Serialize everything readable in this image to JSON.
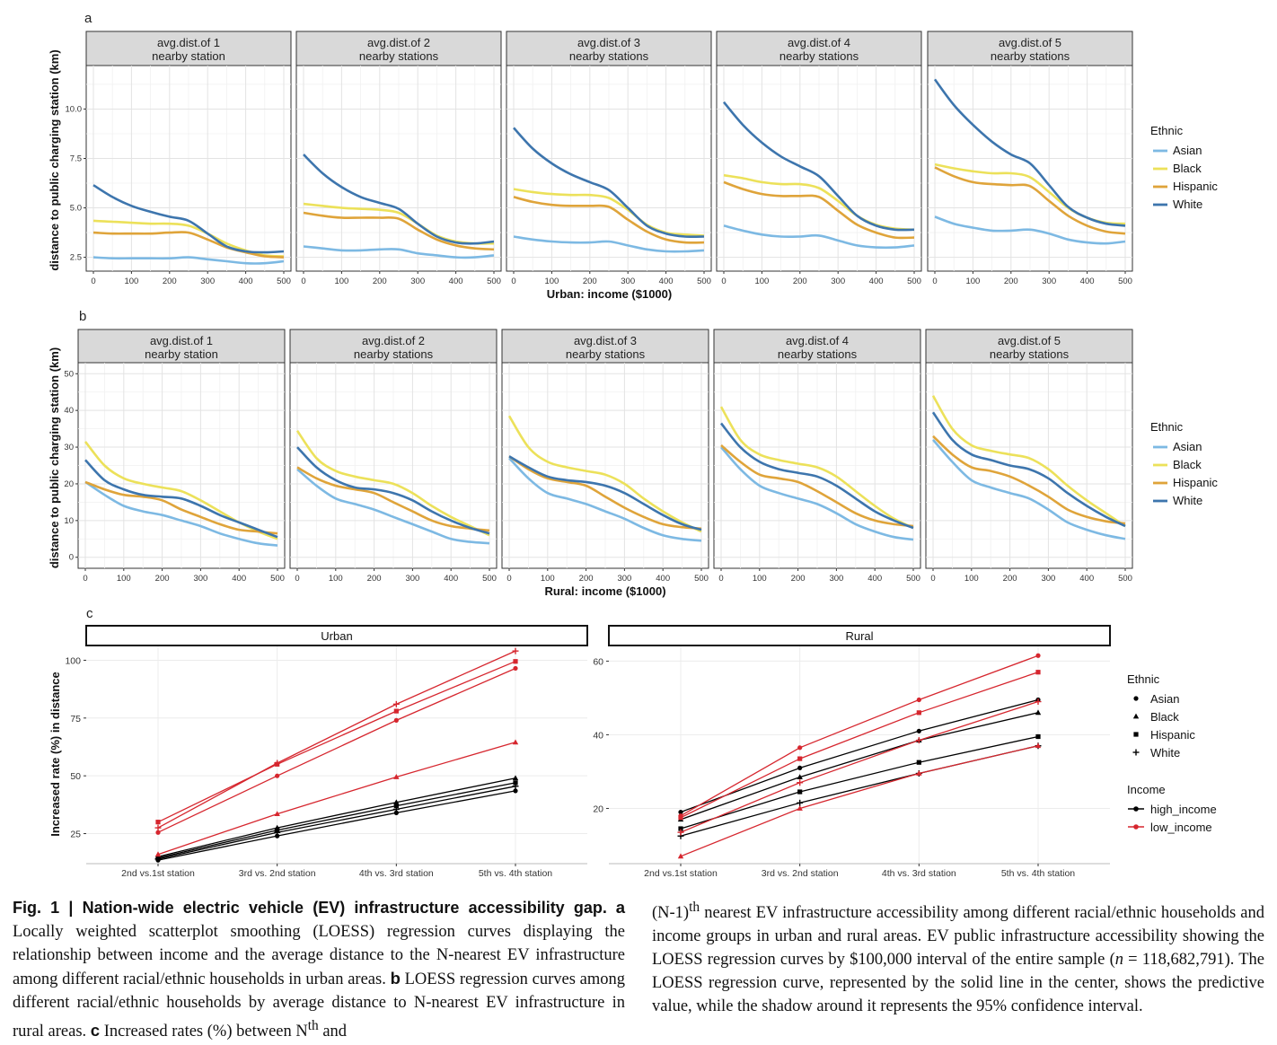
{
  "panel_labels": [
    "a",
    "b",
    "c"
  ],
  "facet_titles": [
    [
      "avg.dist.of 1",
      "nearby station"
    ],
    [
      "avg.dist.of 2",
      "nearby stations"
    ],
    [
      "avg.dist.of 3",
      "nearby stations"
    ],
    [
      "avg.dist.of 4",
      "nearby stations"
    ],
    [
      "avg.dist.of 5",
      "nearby stations"
    ]
  ],
  "colors": {
    "Asian": "#7db9e3",
    "Black": "#ece15a",
    "Hispanic": "#dfa43a",
    "White": "#3d75ad",
    "high_income": "#000000",
    "low_income": "#d6262e"
  },
  "chart_data": [
    {
      "type": "line",
      "panel": "a",
      "xlabel": "Urban: income ($1000)",
      "ylabel": "distance to public charging station (km)",
      "x_ticks": [
        "0",
        "100",
        "200",
        "300",
        "400",
        "500"
      ],
      "y_ticks": [
        "2.5",
        "5.0",
        "7.5",
        "10.0"
      ],
      "xlim": [
        0,
        500
      ],
      "ylim": [
        1.8,
        12.2
      ],
      "legend": {
        "title": "Ethnic",
        "entries": [
          "Asian",
          "Black",
          "Hispanic",
          "White"
        ],
        "placement": "right"
      },
      "x": [
        0,
        50,
        100,
        150,
        200,
        250,
        300,
        350,
        400,
        450,
        500
      ],
      "facets": [
        {
          "Asian": [
            2.5,
            2.45,
            2.45,
            2.45,
            2.45,
            2.5,
            2.4,
            2.3,
            2.2,
            2.2,
            2.3
          ],
          "Black": [
            4.35,
            4.3,
            4.25,
            4.2,
            4.2,
            4.1,
            3.7,
            3.2,
            2.85,
            2.6,
            2.55
          ],
          "Hispanic": [
            3.75,
            3.7,
            3.7,
            3.7,
            3.75,
            3.75,
            3.4,
            3.0,
            2.75,
            2.55,
            2.5
          ],
          "White": [
            6.15,
            5.55,
            5.1,
            4.8,
            4.55,
            4.35,
            3.7,
            3.05,
            2.8,
            2.75,
            2.8
          ]
        },
        {
          "Asian": [
            3.05,
            2.95,
            2.85,
            2.85,
            2.9,
            2.9,
            2.7,
            2.6,
            2.5,
            2.5,
            2.6
          ],
          "Black": [
            5.2,
            5.1,
            5.0,
            4.95,
            4.9,
            4.75,
            4.2,
            3.6,
            3.3,
            3.2,
            3.2
          ],
          "Hispanic": [
            4.75,
            4.6,
            4.5,
            4.5,
            4.5,
            4.45,
            3.9,
            3.4,
            3.1,
            2.95,
            2.9
          ],
          "White": [
            7.7,
            6.75,
            6.05,
            5.55,
            5.25,
            4.95,
            4.2,
            3.55,
            3.25,
            3.2,
            3.3
          ]
        },
        {
          "Asian": [
            3.55,
            3.4,
            3.3,
            3.25,
            3.25,
            3.3,
            3.1,
            2.9,
            2.8,
            2.8,
            2.85
          ],
          "Black": [
            5.95,
            5.8,
            5.7,
            5.65,
            5.65,
            5.5,
            4.9,
            4.15,
            3.75,
            3.65,
            3.6
          ],
          "Hispanic": [
            5.55,
            5.3,
            5.15,
            5.1,
            5.1,
            5.05,
            4.4,
            3.8,
            3.4,
            3.25,
            3.25
          ],
          "White": [
            9.05,
            8.0,
            7.25,
            6.7,
            6.3,
            5.9,
            5.0,
            4.1,
            3.7,
            3.55,
            3.55
          ]
        },
        {
          "Asian": [
            4.1,
            3.85,
            3.65,
            3.55,
            3.55,
            3.6,
            3.35,
            3.1,
            3.0,
            3.0,
            3.1
          ],
          "Black": [
            6.65,
            6.5,
            6.3,
            6.2,
            6.2,
            6.0,
            5.35,
            4.6,
            4.15,
            3.95,
            3.9
          ],
          "Hispanic": [
            6.3,
            5.95,
            5.7,
            5.6,
            5.6,
            5.55,
            4.85,
            4.15,
            3.75,
            3.5,
            3.5
          ],
          "White": [
            10.35,
            9.2,
            8.3,
            7.6,
            7.1,
            6.6,
            5.6,
            4.6,
            4.1,
            3.9,
            3.9
          ]
        },
        {
          "Asian": [
            4.55,
            4.2,
            4.0,
            3.85,
            3.85,
            3.9,
            3.7,
            3.4,
            3.25,
            3.2,
            3.3
          ],
          "Black": [
            7.2,
            7.0,
            6.85,
            6.75,
            6.75,
            6.55,
            5.8,
            5.0,
            4.5,
            4.25,
            4.2
          ],
          "Hispanic": [
            7.05,
            6.6,
            6.3,
            6.2,
            6.15,
            6.1,
            5.35,
            4.6,
            4.1,
            3.8,
            3.7
          ],
          "White": [
            11.5,
            10.2,
            9.2,
            8.35,
            7.7,
            7.25,
            6.15,
            5.05,
            4.5,
            4.2,
            4.1
          ]
        }
      ]
    },
    {
      "type": "line",
      "panel": "b",
      "xlabel": "Rural: income ($1000)",
      "ylabel": "distance to public charging station (km)",
      "x_ticks": [
        "0",
        "100",
        "200",
        "300",
        "400",
        "500"
      ],
      "y_ticks": [
        "0",
        "10",
        "20",
        "30",
        "40",
        "50"
      ],
      "xlim": [
        0,
        500
      ],
      "ylim": [
        -3,
        53
      ],
      "legend": {
        "title": "Ethnic",
        "entries": [
          "Asian",
          "Black",
          "Hispanic",
          "White"
        ],
        "placement": "right"
      },
      "x": [
        0,
        50,
        100,
        150,
        200,
        250,
        300,
        350,
        400,
        450,
        500
      ],
      "facets": [
        {
          "Asian": [
            20.5,
            17.0,
            14.0,
            12.5,
            11.5,
            10.0,
            8.5,
            6.5,
            5.0,
            3.8,
            3.2
          ],
          "Black": [
            31.5,
            25.0,
            21.5,
            20.0,
            19.0,
            18.0,
            15.5,
            12.5,
            9.5,
            7.0,
            5.0
          ],
          "Hispanic": [
            20.5,
            18.5,
            17.0,
            16.5,
            15.5,
            13.0,
            11.0,
            9.0,
            7.5,
            7.0,
            6.5
          ],
          "White": [
            26.5,
            21.0,
            18.5,
            17.0,
            16.5,
            16.0,
            14.0,
            11.5,
            9.5,
            7.5,
            5.5
          ]
        },
        {
          "Asian": [
            24.0,
            19.5,
            16.0,
            14.5,
            13.0,
            11.0,
            9.0,
            7.0,
            5.0,
            4.2,
            3.8
          ],
          "Black": [
            34.5,
            27.0,
            23.5,
            22.0,
            21.0,
            20.0,
            17.5,
            14.0,
            11.0,
            8.5,
            6.0
          ],
          "Hispanic": [
            24.5,
            21.5,
            19.5,
            18.5,
            17.5,
            15.0,
            12.5,
            10.0,
            8.5,
            7.8,
            7.3
          ],
          "White": [
            30.0,
            24.5,
            21.0,
            19.0,
            18.5,
            17.5,
            15.5,
            12.5,
            10.0,
            8.0,
            6.5
          ]
        },
        {
          "Asian": [
            27.0,
            21.5,
            17.5,
            16.0,
            14.5,
            12.5,
            10.5,
            8.0,
            6.0,
            5.0,
            4.5
          ],
          "Black": [
            38.5,
            30.0,
            26.0,
            24.5,
            23.5,
            22.5,
            20.0,
            16.0,
            12.5,
            9.5,
            7.0
          ],
          "Hispanic": [
            27.5,
            24.0,
            21.5,
            20.5,
            19.5,
            16.5,
            13.5,
            11.0,
            9.0,
            8.2,
            7.8
          ],
          "White": [
            27.5,
            24.5,
            22.0,
            21.0,
            20.5,
            19.5,
            17.5,
            14.5,
            11.5,
            9.0,
            7.5
          ]
        },
        {
          "Asian": [
            30.0,
            24.0,
            19.5,
            17.5,
            16.0,
            14.5,
            12.0,
            9.0,
            7.0,
            5.5,
            4.8
          ],
          "Black": [
            41.0,
            32.0,
            28.0,
            26.5,
            25.5,
            24.5,
            22.0,
            18.0,
            14.0,
            10.5,
            8.0
          ],
          "Hispanic": [
            30.5,
            26.0,
            22.5,
            21.5,
            20.5,
            18.0,
            15.0,
            12.0,
            10.0,
            9.0,
            8.5
          ],
          "White": [
            36.5,
            30.0,
            26.0,
            24.0,
            23.0,
            22.0,
            19.5,
            16.0,
            12.5,
            10.0,
            8.0
          ]
        },
        {
          "Asian": [
            32.0,
            26.0,
            21.0,
            19.0,
            17.5,
            16.0,
            13.0,
            9.5,
            7.5,
            6.0,
            5.0
          ],
          "Black": [
            44.0,
            35.0,
            30.5,
            29.0,
            28.0,
            27.0,
            24.0,
            19.5,
            15.5,
            12.0,
            8.5
          ],
          "Hispanic": [
            33.0,
            28.0,
            24.5,
            23.5,
            22.0,
            19.5,
            16.5,
            13.0,
            11.0,
            9.8,
            9.2
          ],
          "White": [
            39.5,
            32.0,
            28.0,
            26.5,
            25.0,
            24.0,
            21.5,
            17.5,
            14.0,
            11.0,
            8.5
          ]
        }
      ]
    },
    {
      "type": "line",
      "panel": "c",
      "ylabel": "Increased rate (%) in distance",
      "categories": [
        "2nd vs.1st station",
        "3rd vs. 2nd station",
        "4th vs. 3rd station",
        "5th vs. 4th station"
      ],
      "legend": {
        "title_shape": "Ethnic",
        "shapes": [
          "Asian",
          "Black",
          "Hispanic",
          "White"
        ],
        "title_color": "Income",
        "colors": [
          "high_income",
          "low_income"
        ],
        "placement": "right"
      },
      "facets": [
        {
          "title": "Urban",
          "y_ticks": [
            "25",
            "50",
            "75",
            "100"
          ],
          "ylim": [
            12,
            106
          ],
          "series": [
            {
              "ethnic": "Asian",
              "income": "high_income",
              "values": [
                13.5,
                24.0,
                34.0,
                43.5
              ]
            },
            {
              "ethnic": "Black",
              "income": "high_income",
              "values": [
                15.0,
                27.5,
                38.5,
                49.0
              ]
            },
            {
              "ethnic": "Hispanic",
              "income": "high_income",
              "values": [
                14.5,
                26.5,
                37.0,
                47.0
              ]
            },
            {
              "ethnic": "White",
              "income": "high_income",
              "values": [
                14.0,
                25.5,
                35.5,
                45.5
              ]
            },
            {
              "ethnic": "Asian",
              "income": "low_income",
              "values": [
                25.5,
                50.0,
                74.0,
                96.5
              ]
            },
            {
              "ethnic": "Black",
              "income": "low_income",
              "values": [
                16.0,
                33.5,
                49.5,
                64.5
              ]
            },
            {
              "ethnic": "Hispanic",
              "income": "low_income",
              "values": [
                30.0,
                55.0,
                78.0,
                99.5
              ]
            },
            {
              "ethnic": "White",
              "income": "low_income",
              "values": [
                27.5,
                55.5,
                81.0,
                104.0
              ]
            }
          ]
        },
        {
          "title": "Rural",
          "y_ticks": [
            "20",
            "40",
            "60"
          ],
          "ylim": [
            5,
            64
          ],
          "series": [
            {
              "ethnic": "Asian",
              "income": "high_income",
              "values": [
                19.0,
                31.0,
                41.0,
                49.5
              ]
            },
            {
              "ethnic": "Black",
              "income": "high_income",
              "values": [
                17.0,
                28.5,
                38.5,
                46.0
              ]
            },
            {
              "ethnic": "Hispanic",
              "income": "high_income",
              "values": [
                14.5,
                24.5,
                32.5,
                39.5
              ]
            },
            {
              "ethnic": "White",
              "income": "high_income",
              "values": [
                12.5,
                21.5,
                29.5,
                37.0
              ]
            },
            {
              "ethnic": "Asian",
              "income": "low_income",
              "values": [
                18.0,
                36.5,
                49.5,
                61.5
              ]
            },
            {
              "ethnic": "Black",
              "income": "low_income",
              "values": [
                7.0,
                20.0,
                29.5,
                37.0
              ]
            },
            {
              "ethnic": "Hispanic",
              "income": "low_income",
              "values": [
                17.5,
                33.5,
                46.0,
                57.0
              ]
            },
            {
              "ethnic": "White",
              "income": "low_income",
              "values": [
                13.5,
                27.0,
                38.5,
                49.0
              ]
            }
          ]
        }
      ]
    }
  ],
  "caption": {
    "title": "Fig. 1 | Nation-wide electric vehicle (EV) infrastructure accessibility gap.",
    "left_html": "<b>a</b> Locally weighted scatterplot smoothing (LOESS) regression curves displaying the relationship between income and the average distance to the N-nearest EV infrastructure among different racial/ethnic households in urban areas. <b>b</b> LOESS regression curves among different racial/ethnic households by average distance to N-nearest EV infrastructure in rural areas. <b>c</b> Increased rates (%) between N<sup>th</sup> and",
    "right_html": "(N-1)<sup>th</sup> nearest EV infrastructure accessibility among different racial/ethnic households and income groups in urban and rural areas. EV public infrastructure accessibility showing the LOESS regression curves by $100,000 interval of the entire sample (<i>n</i> = 118,682,791). The LOESS regression curve, represented by the solid line in the center, shows the predictive value, while the shadow around it represents the 95% confidence interval."
  }
}
